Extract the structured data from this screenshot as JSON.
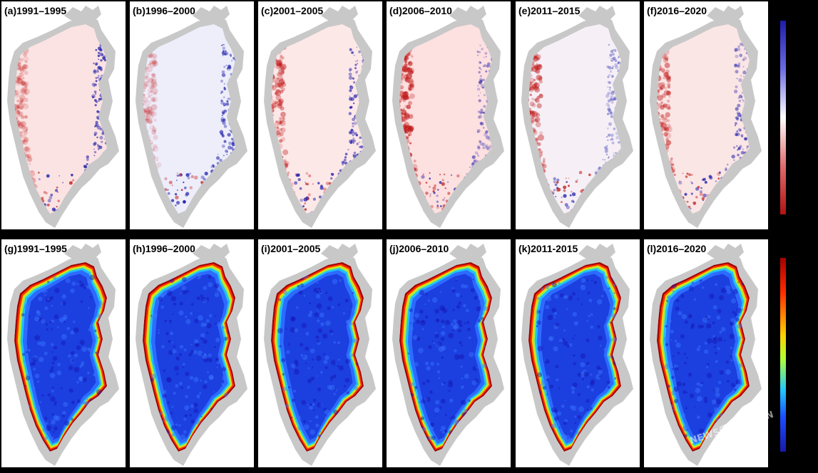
{
  "panels": [
    {
      "label": "(a)1991–1995",
      "mode": "diverging",
      "variant": 0
    },
    {
      "label": "(b)1996–2000",
      "mode": "diverging",
      "variant": 1
    },
    {
      "label": "(c)2001–2005",
      "mode": "diverging",
      "variant": 2
    },
    {
      "label": "(d)2006–2010",
      "mode": "diverging",
      "variant": 3
    },
    {
      "label": "(e)2011–2015",
      "mode": "diverging",
      "variant": 4
    },
    {
      "label": "(f)2016–2020",
      "mode": "diverging",
      "variant": 5
    },
    {
      "label": "(g)1991–1995",
      "mode": "sequential",
      "variant": 0
    },
    {
      "label": "(h)1996–2000",
      "mode": "sequential",
      "variant": 1
    },
    {
      "label": "(i)2001–2005",
      "mode": "sequential",
      "variant": 2
    },
    {
      "label": "(j)2006–2010",
      "mode": "sequential",
      "variant": 3
    },
    {
      "label": "(k)2011-2015",
      "mode": "sequential",
      "variant": 4
    },
    {
      "label": "(l)2016–2020",
      "mode": "sequential",
      "variant": 5
    }
  ],
  "colors": {
    "background": "#000000",
    "land": "#c8c8c8",
    "diverging_positive": "#1a1aa8",
    "diverging_neutral": "#ffffff",
    "diverging_negative": "#b01010",
    "sequential_low": "#1818a8",
    "sequential_high": "#a00000"
  },
  "watermark": {
    "text": "NEWS.WJJ.PU.CN"
  }
}
